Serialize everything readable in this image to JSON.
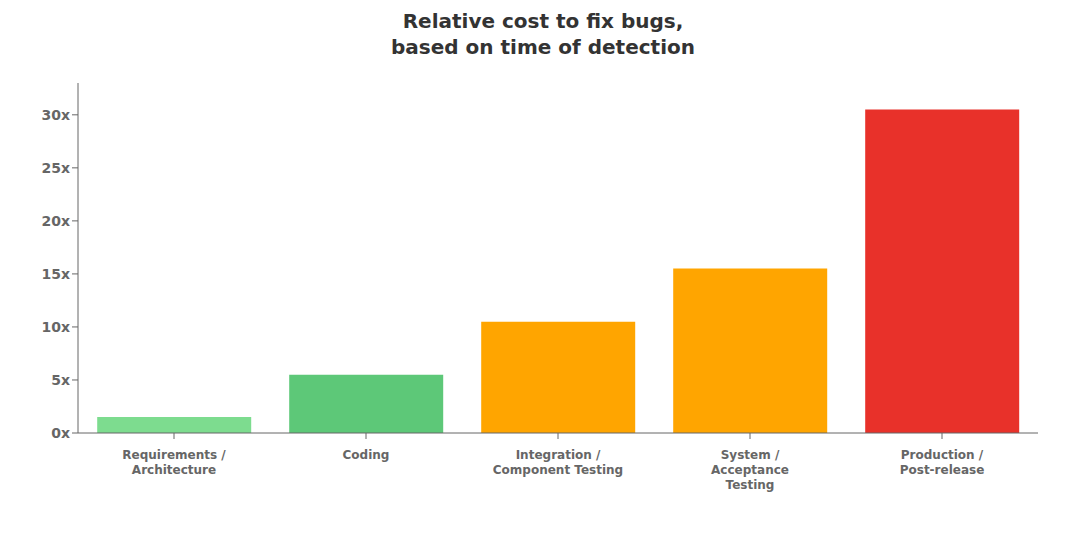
{
  "chart_data": {
    "type": "bar",
    "title": "Relative cost to fix bugs,\nbased on time of detection",
    "categories": [
      "Requirements /\nArchitecture",
      "Coding",
      "Integration /\nComponent Testing",
      "System /\nAcceptance\nTesting",
      "Production /\nPost-release"
    ],
    "values": [
      1.5,
      5.5,
      10.5,
      15.5,
      30.5
    ],
    "colors": [
      "#7DDC8F",
      "#5DC878",
      "#FFA500",
      "#FFA500",
      "#E8312A"
    ],
    "ylim": [
      0,
      33
    ],
    "yticks": [
      {
        "value": 0,
        "label": "0x"
      },
      {
        "value": 5,
        "label": "5x"
      },
      {
        "value": 10,
        "label": "10x"
      },
      {
        "value": 15,
        "label": "15x"
      },
      {
        "value": 20,
        "label": "20x"
      },
      {
        "value": 25,
        "label": "25x"
      },
      {
        "value": 30,
        "label": "30x"
      }
    ],
    "grid": false
  }
}
